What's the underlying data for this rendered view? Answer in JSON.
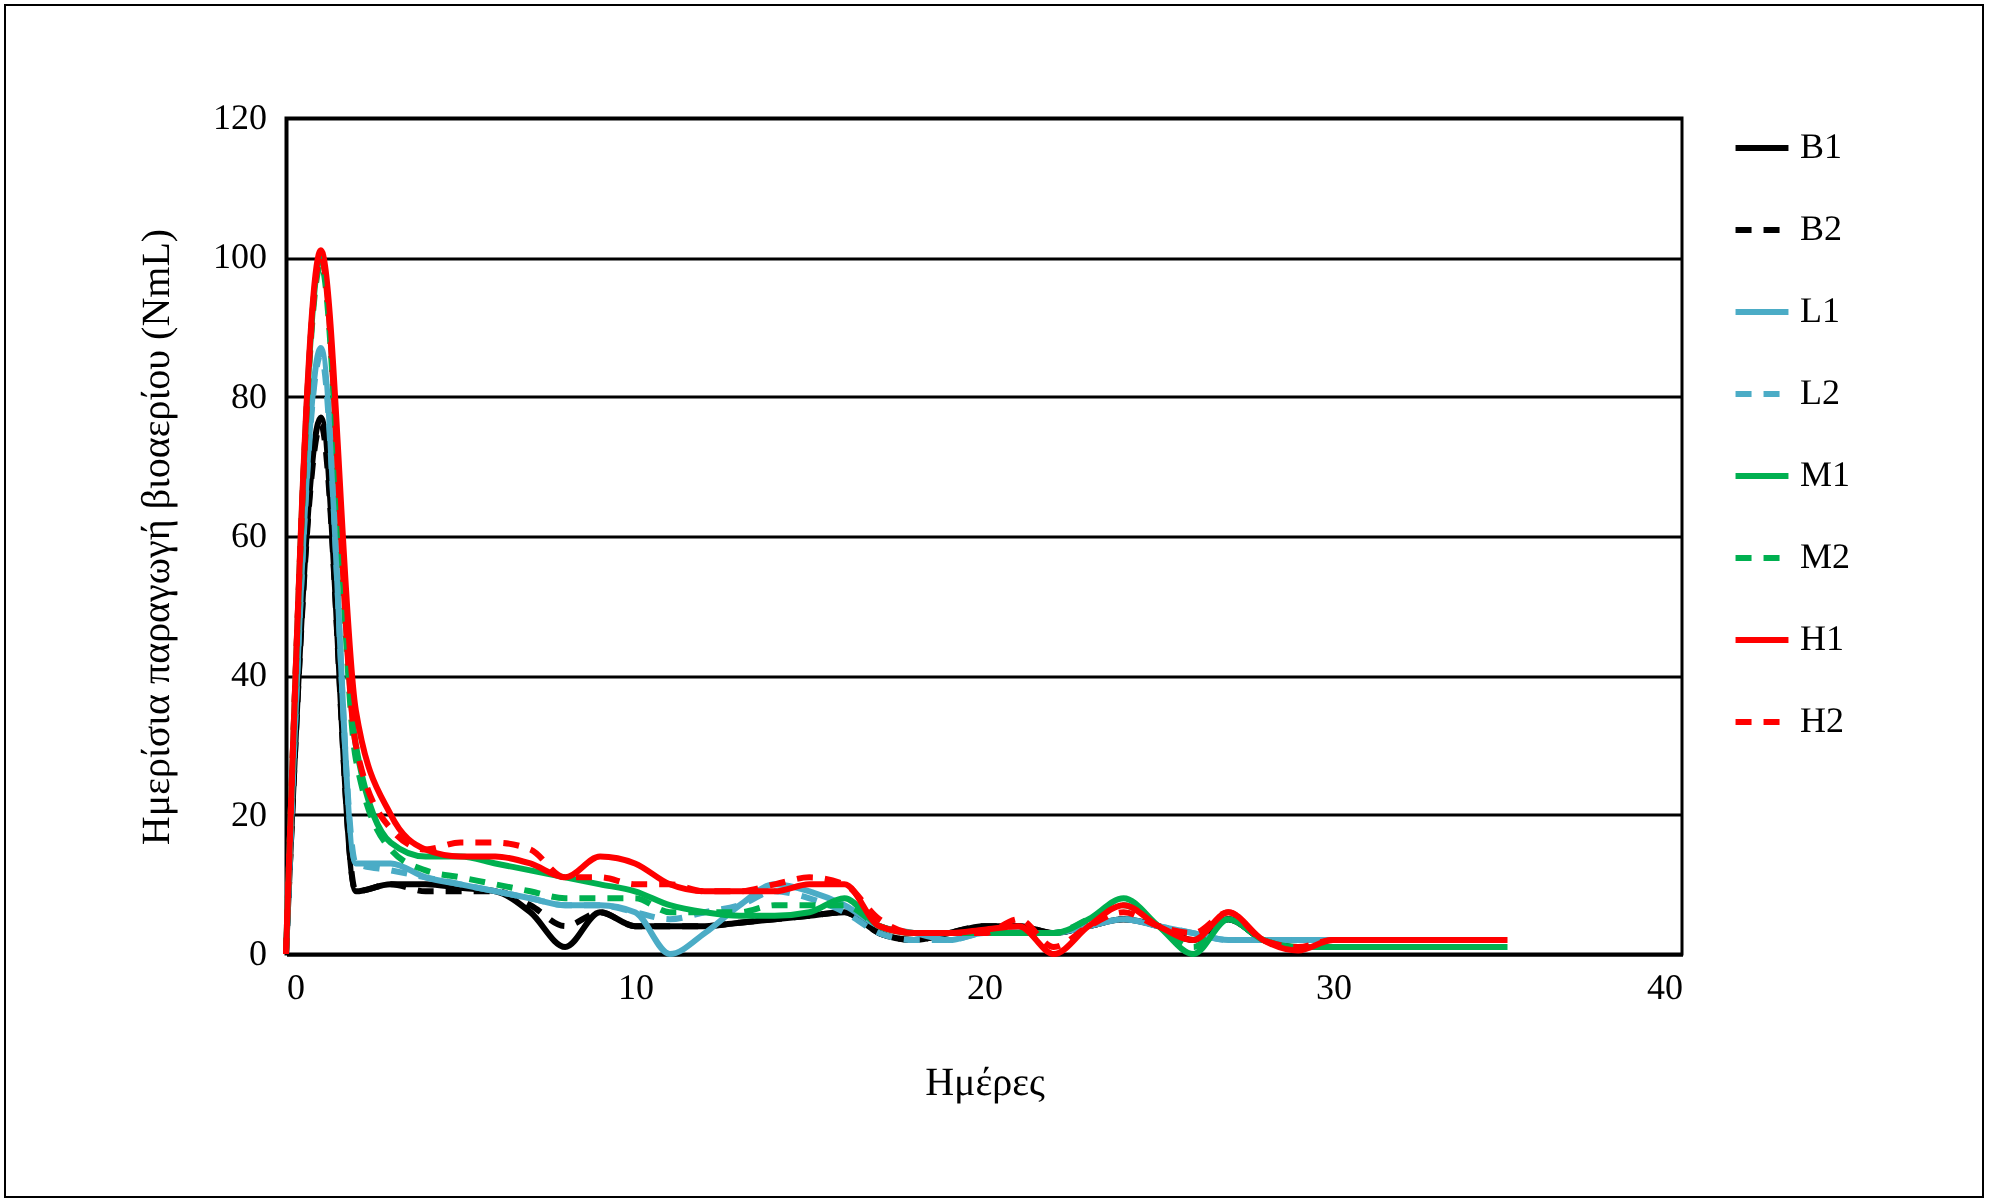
{
  "chart_data": {
    "type": "line",
    "xlabel": "Ημέρες",
    "ylabel": "Ημερίσια παραγωγή βιοαερίου  (NmL)",
    "x": [
      0,
      1,
      2,
      3,
      4,
      5,
      6,
      7,
      8,
      9,
      10,
      11,
      12,
      13,
      14,
      15,
      16,
      17,
      18,
      19,
      20,
      21,
      22,
      23,
      24,
      25,
      26,
      27,
      28,
      29,
      30,
      31,
      32,
      33,
      34,
      35
    ],
    "series": [
      {
        "name": "B1",
        "color": "#000000",
        "line_style": "solid",
        "x": [
          0,
          1,
          2,
          3,
          4,
          5,
          6,
          7,
          8,
          9,
          10,
          11,
          12,
          13,
          14,
          15,
          16,
          17,
          18,
          19,
          20,
          21,
          22,
          23,
          24,
          25,
          26,
          27,
          28,
          29,
          30
        ],
        "values": [
          0,
          77,
          9,
          10,
          10,
          9.5,
          9,
          6,
          1,
          6,
          4,
          4,
          4,
          4.5,
          5,
          5.5,
          6,
          3,
          2,
          3,
          4,
          4,
          3,
          4,
          5,
          4,
          2,
          5,
          2,
          1,
          1
        ]
      },
      {
        "name": "B2",
        "color": "#000000",
        "line_style": "dashed",
        "x": [
          0,
          1,
          2,
          3,
          4,
          5,
          6,
          7,
          8,
          9,
          10,
          11,
          12,
          13,
          14,
          15,
          16,
          17,
          18,
          19,
          20,
          21,
          22,
          23,
          24,
          25,
          26,
          27,
          28,
          29,
          30
        ],
        "values": [
          0,
          76,
          9,
          10,
          9,
          9,
          9,
          7,
          4,
          6,
          4,
          4,
          4,
          4.5,
          5,
          5.5,
          6,
          3,
          2,
          3,
          4,
          4,
          3,
          4,
          5,
          4,
          2,
          5,
          2,
          1,
          1
        ]
      },
      {
        "name": "L1",
        "color": "#4bacc6",
        "line_style": "solid",
        "x": [
          0,
          1,
          2,
          3,
          4,
          5,
          6,
          7,
          8,
          9,
          10,
          11,
          12,
          13,
          14,
          15,
          16,
          17,
          18,
          19,
          20,
          21,
          22,
          23,
          24,
          25,
          26,
          27,
          28,
          29,
          30
        ],
        "values": [
          0,
          87,
          13,
          13,
          11,
          10,
          9,
          8,
          7,
          7,
          6,
          0,
          3,
          7,
          10,
          9,
          7,
          4,
          3,
          2,
          3,
          3,
          3,
          4,
          5,
          4,
          3,
          2,
          2,
          2,
          2
        ]
      },
      {
        "name": "L2",
        "color": "#4bacc6",
        "line_style": "dashed",
        "x": [
          0,
          1,
          2,
          3,
          4,
          5,
          6,
          7,
          8,
          9,
          10,
          11,
          12,
          13,
          14,
          15,
          16,
          17,
          18,
          19,
          20,
          21,
          22,
          23,
          24,
          25,
          26,
          27,
          28,
          29,
          30
        ],
        "values": [
          0,
          86,
          13,
          12,
          11,
          10,
          9,
          8,
          7,
          7,
          6,
          5,
          6,
          7,
          9,
          8,
          6,
          3,
          2,
          2,
          3,
          3,
          3,
          4,
          5,
          4,
          3,
          2,
          2,
          2,
          2
        ]
      },
      {
        "name": "M1",
        "color": "#00b050",
        "line_style": "solid",
        "values": [
          0,
          100,
          30,
          16,
          14,
          14,
          13,
          12,
          11,
          10,
          9,
          7,
          6,
          5.5,
          5.5,
          6,
          8,
          4,
          3,
          3,
          3,
          3,
          3,
          5,
          8,
          4,
          0,
          5,
          2,
          1,
          1,
          1,
          1,
          1,
          1,
          1
        ]
      },
      {
        "name": "M2",
        "color": "#00b050",
        "line_style": "dashed",
        "values": [
          0,
          99,
          28,
          15,
          12,
          11,
          10,
          9,
          8,
          8,
          8,
          6,
          6,
          6,
          7,
          7,
          7,
          4,
          3,
          3,
          3,
          3,
          3,
          5,
          7,
          4,
          1,
          5,
          2,
          1,
          1,
          1,
          1,
          1,
          1,
          1
        ]
      },
      {
        "name": "H1",
        "color": "#ff0000",
        "line_style": "solid",
        "values": [
          0,
          101,
          35,
          20,
          15,
          14,
          14,
          13,
          11,
          14,
          13,
          10,
          9,
          9,
          9,
          10,
          10,
          4,
          3,
          3,
          3.5,
          4,
          0,
          4,
          7,
          4,
          2,
          6,
          2,
          0.5,
          2,
          2,
          2,
          2,
          2,
          2
        ]
      },
      {
        "name": "H2",
        "color": "#ff0000",
        "line_style": "dashed",
        "values": [
          0,
          100,
          30,
          18,
          15,
          16,
          16,
          15,
          11,
          11,
          10,
          10,
          9,
          9,
          10,
          11,
          10,
          5,
          3,
          3,
          3,
          5,
          1,
          4,
          6,
          4,
          3,
          6,
          2,
          1,
          2,
          2,
          2,
          2,
          2,
          2
        ]
      }
    ],
    "xlim": [
      0,
      40
    ],
    "xticks": [
      0,
      10,
      20,
      30,
      40
    ],
    "ylim": [
      0,
      120
    ],
    "yticks": [
      0,
      20,
      40,
      60,
      80,
      100,
      120
    ],
    "grid": "y",
    "legend": "right",
    "marker": "none"
  }
}
